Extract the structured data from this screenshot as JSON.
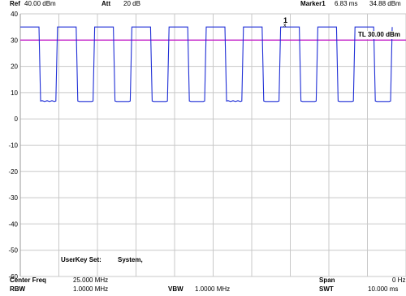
{
  "header": {
    "ref_label": "Ref",
    "ref_value": "40.00 dBm",
    "att_label": "Att",
    "att_value": "20 dB",
    "marker_label": "Marker1",
    "marker_time": "6.83 ms",
    "marker_level": "34.88 dBm"
  },
  "trace": {
    "marker_number": "1",
    "marker_symbol": "x",
    "threshold_label": "TL 30.00 dBm",
    "trace_color": "#1f2fd6",
    "threshold_color": "#c21ec8"
  },
  "y_axis": {
    "ticks": [
      "40",
      "30",
      "20",
      "10",
      "0",
      "-10",
      "-20",
      "-30",
      "-40",
      "-50",
      "-60"
    ]
  },
  "info": {
    "userkey_label": "UserKey Set:",
    "userkey_value": "System,"
  },
  "footer": {
    "center_freq_label": "Center Freq",
    "center_freq_value": "25.000 MHz",
    "span_label": "Span",
    "span_value": "0 Hz",
    "rbw_label": "RBW",
    "rbw_value": "1.0000 MHz",
    "vbw_label": "VBW",
    "vbw_value": "1.0000 MHz",
    "swt_label": "SWT",
    "swt_value": "10.000 ms"
  }
}
